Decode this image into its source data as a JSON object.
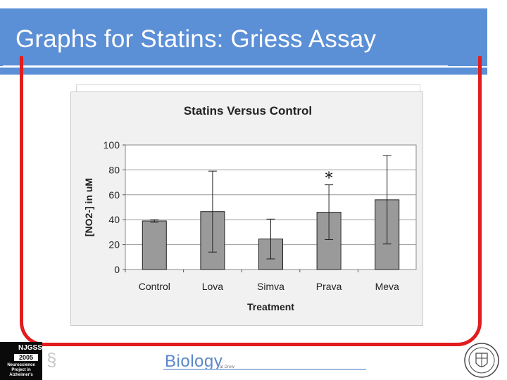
{
  "slide": {
    "title": "Graphs for Statins: Griess Assay"
  },
  "footer": {
    "logo_top": "NJGSS",
    "logo_year": "2005",
    "logo_lines": [
      "Neuroscience",
      "Project in",
      "Alzheimer's"
    ],
    "biology_text": "Biology",
    "biology_sub": "at Drew"
  },
  "colors": {
    "title_bar": "#5b8fd6",
    "frame": "#e11d1d",
    "bars": "#9a9a9a",
    "plot_background": "#ffffff",
    "chart_background": "#f1f1f1"
  },
  "chart_data": {
    "type": "bar",
    "title": "Statins Versus Control",
    "xlabel": "Treatment",
    "ylabel": "[NO2-] in uM",
    "ylim": [
      0,
      100
    ],
    "yticks": [
      0,
      20,
      40,
      60,
      80,
      100
    ],
    "categories": [
      "Control",
      "Lova",
      "Simva",
      "Prava",
      "Meva"
    ],
    "values": [
      39,
      46.5,
      24.5,
      46,
      56
    ],
    "error_bars": [
      1,
      32.5,
      16,
      22,
      35.5
    ],
    "annotations": [
      {
        "category": "Prava",
        "text": "*"
      }
    ],
    "grid": "horizontal",
    "legend": "none"
  }
}
